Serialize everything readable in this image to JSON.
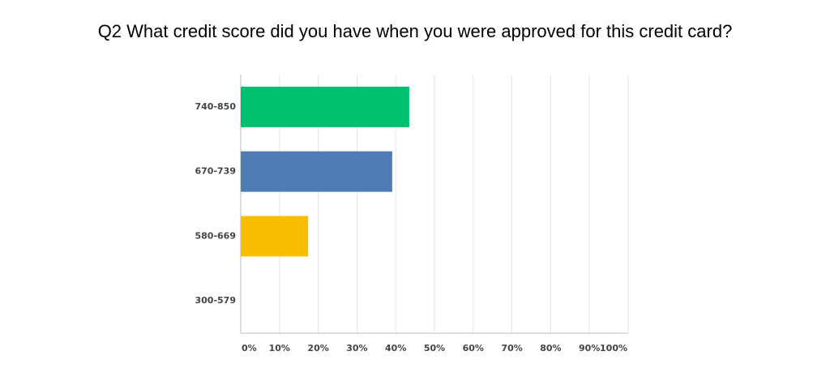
{
  "chart_data": {
    "type": "bar",
    "title": "Q2 What credit score did you have when you were approved for this credit card?",
    "categories": [
      "740-850",
      "670-739",
      "580-669",
      "300-579"
    ],
    "values": [
      43.5,
      39.1,
      17.4,
      0
    ],
    "colors": [
      "#00bf6f",
      "#507cb6",
      "#f9be00",
      "#6bc8cd"
    ],
    "xlim": [
      0,
      100
    ],
    "xticks": [
      {
        "value": 0,
        "label": "0%"
      },
      {
        "value": 10,
        "label": "10%"
      },
      {
        "value": 20,
        "label": "20%"
      },
      {
        "value": 30,
        "label": "30%"
      },
      {
        "value": 40,
        "label": "40%"
      },
      {
        "value": 50,
        "label": "50%"
      },
      {
        "value": 60,
        "label": "60%"
      },
      {
        "value": 70,
        "label": "70%"
      },
      {
        "value": 80,
        "label": "80%"
      },
      {
        "value": 90,
        "label": "90%"
      },
      {
        "value": 100,
        "label": "100%"
      }
    ],
    "grid": true
  }
}
